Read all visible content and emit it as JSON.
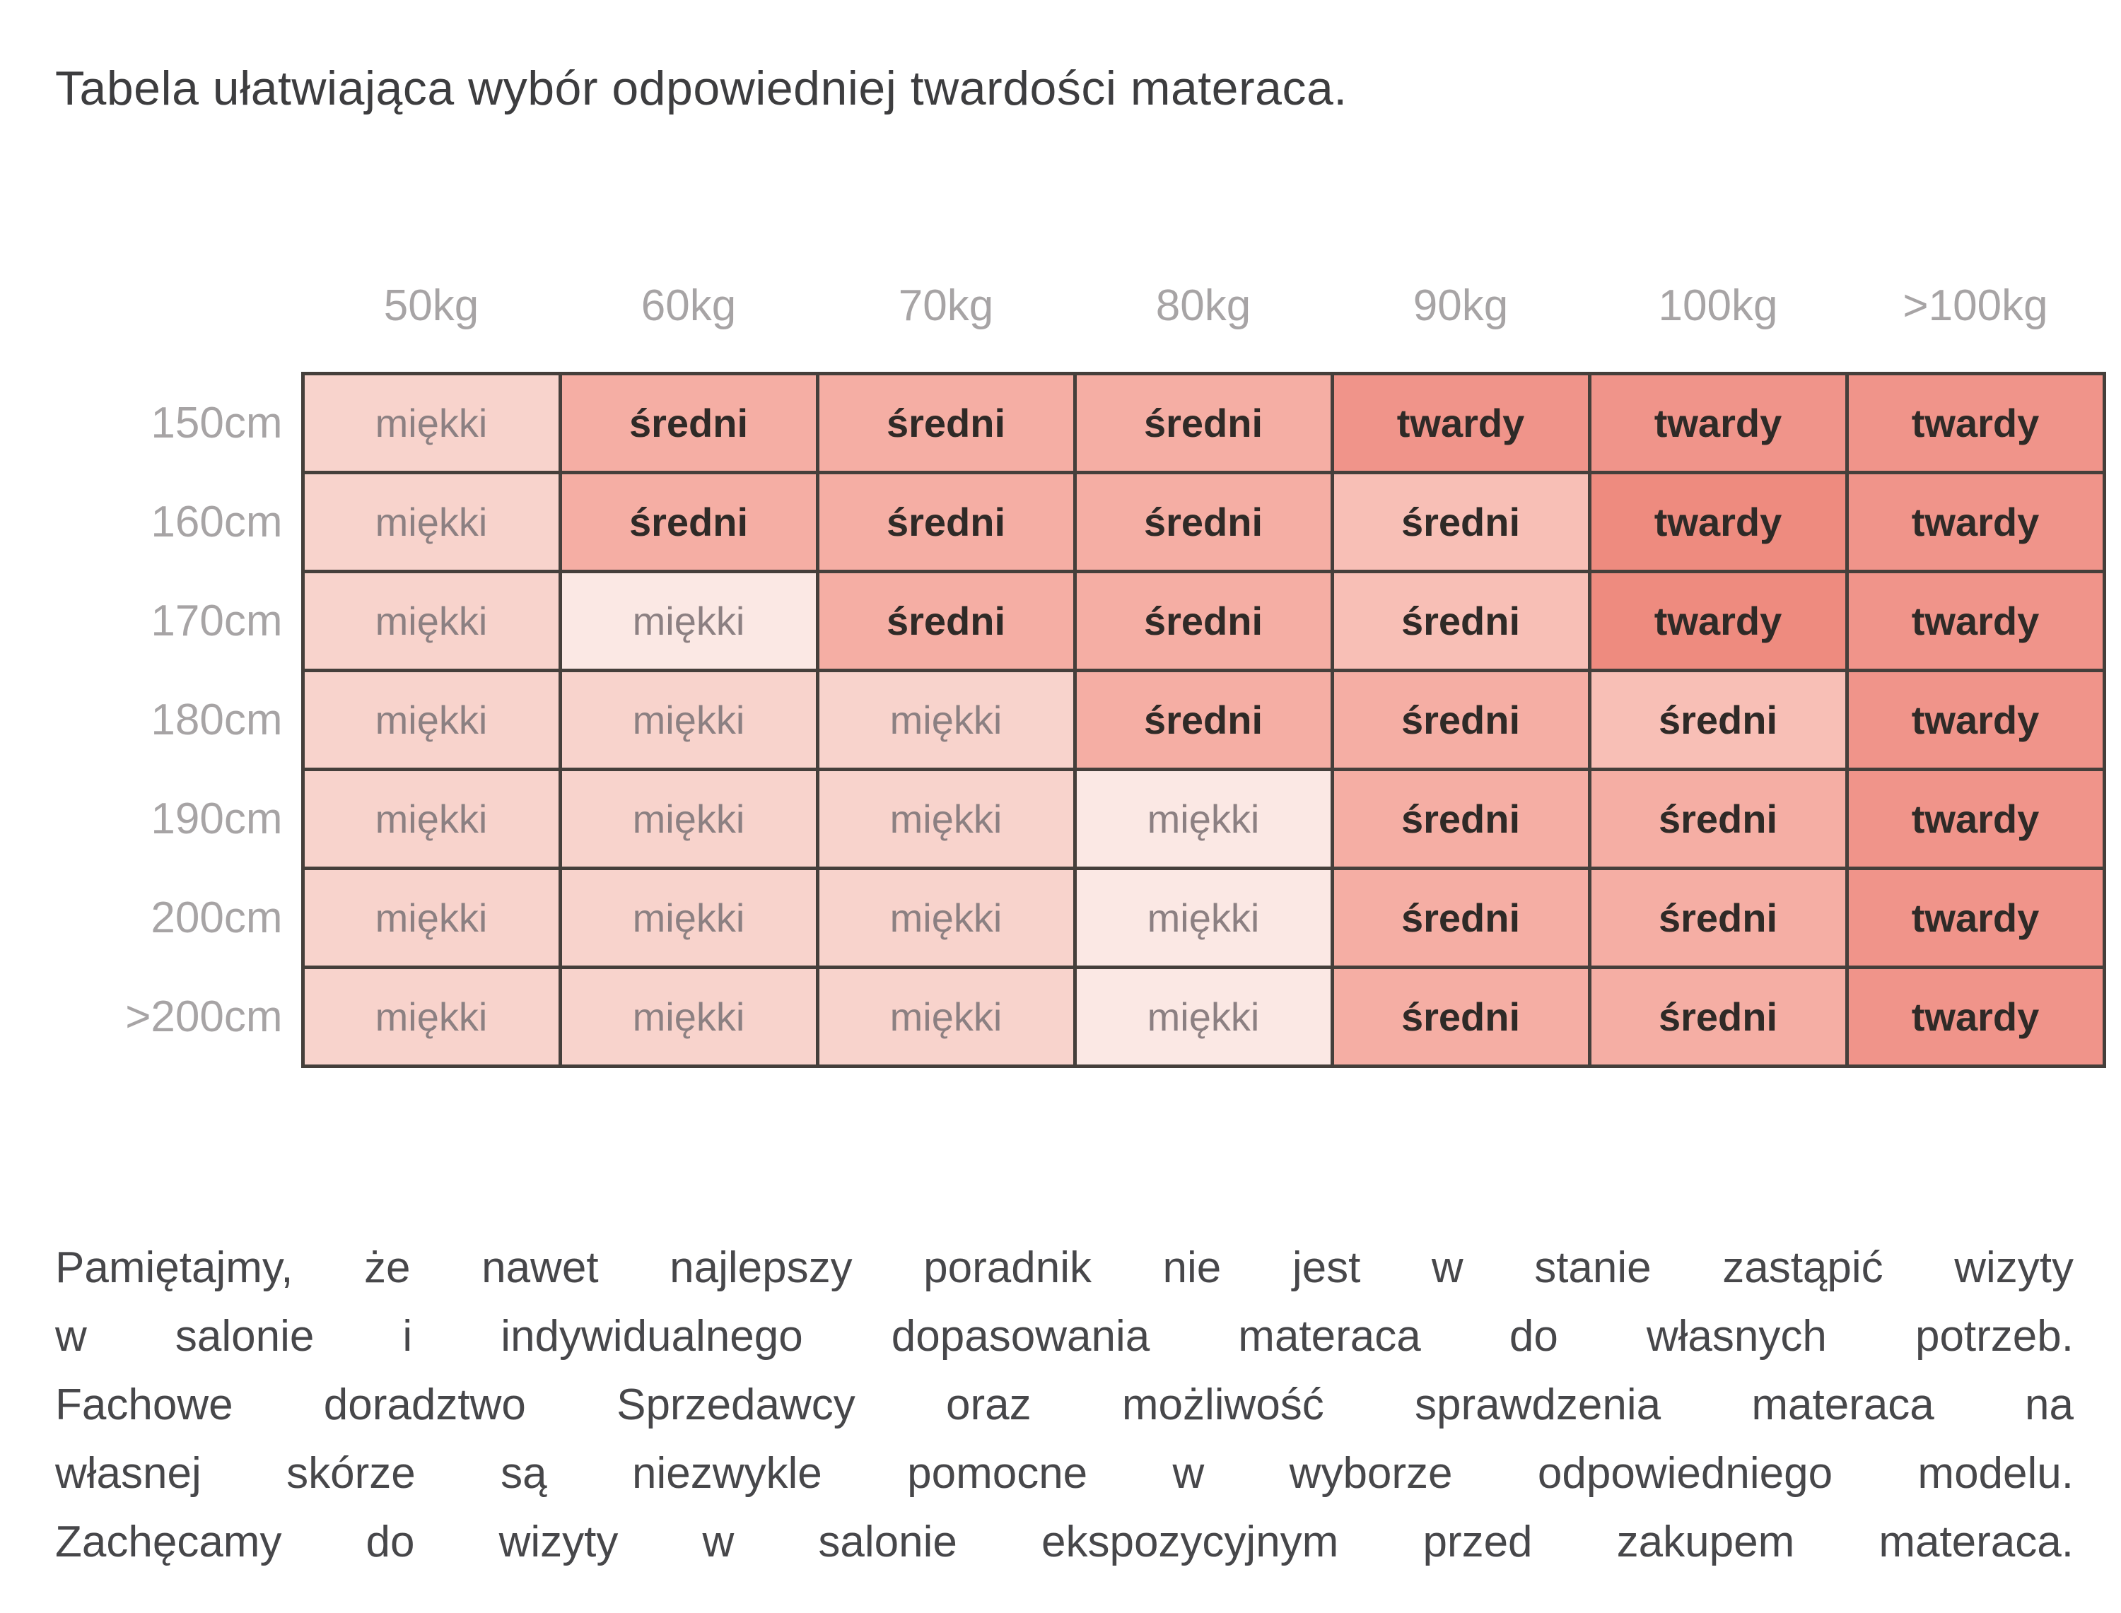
{
  "title": "Tabela ułatwiająca wybór odpowiedniej twardości materaca.",
  "table": {
    "corner_label": "",
    "weight_headers": [
      "50kg",
      "60kg",
      "70kg",
      "80kg",
      "90kg",
      "100kg",
      ">100kg"
    ],
    "rows": [
      {
        "label": "150cm",
        "cells": [
          {
            "text": "miękki",
            "shade": "soft"
          },
          {
            "text": "średni",
            "shade": "medium"
          },
          {
            "text": "średni",
            "shade": "medium"
          },
          {
            "text": "średni",
            "shade": "medium"
          },
          {
            "text": "twardy",
            "shade": "firm"
          },
          {
            "text": "twardy",
            "shade": "firm"
          },
          {
            "text": "twardy",
            "shade": "firm"
          }
        ]
      },
      {
        "label": "160cm",
        "cells": [
          {
            "text": "miękki",
            "shade": "soft"
          },
          {
            "text": "średni",
            "shade": "medium"
          },
          {
            "text": "średni",
            "shade": "medium"
          },
          {
            "text": "średni",
            "shade": "medium"
          },
          {
            "text": "średni",
            "shade": "medium-light"
          },
          {
            "text": "twardy",
            "shade": "firm-dark"
          },
          {
            "text": "twardy",
            "shade": "firm"
          }
        ]
      },
      {
        "label": "170cm",
        "cells": [
          {
            "text": "miękki",
            "shade": "soft"
          },
          {
            "text": "miękki",
            "shade": "soft-light"
          },
          {
            "text": "średni",
            "shade": "medium"
          },
          {
            "text": "średni",
            "shade": "medium"
          },
          {
            "text": "średni",
            "shade": "medium-light"
          },
          {
            "text": "twardy",
            "shade": "firm-dark"
          },
          {
            "text": "twardy",
            "shade": "firm"
          }
        ]
      },
      {
        "label": "180cm",
        "cells": [
          {
            "text": "miękki",
            "shade": "soft"
          },
          {
            "text": "miękki",
            "shade": "soft"
          },
          {
            "text": "miękki",
            "shade": "soft"
          },
          {
            "text": "średni",
            "shade": "medium"
          },
          {
            "text": "średni",
            "shade": "medium"
          },
          {
            "text": "średni",
            "shade": "medium-light"
          },
          {
            "text": "twardy",
            "shade": "firm"
          }
        ]
      },
      {
        "label": "190cm",
        "cells": [
          {
            "text": "miękki",
            "shade": "soft"
          },
          {
            "text": "miękki",
            "shade": "soft"
          },
          {
            "text": "miękki",
            "shade": "soft"
          },
          {
            "text": "miękki",
            "shade": "soft-light"
          },
          {
            "text": "średni",
            "shade": "medium"
          },
          {
            "text": "średni",
            "shade": "medium"
          },
          {
            "text": "twardy",
            "shade": "firm"
          }
        ]
      },
      {
        "label": "200cm",
        "cells": [
          {
            "text": "miękki",
            "shade": "soft"
          },
          {
            "text": "miękki",
            "shade": "soft"
          },
          {
            "text": "miękki",
            "shade": "soft"
          },
          {
            "text": "miękki",
            "shade": "soft-light"
          },
          {
            "text": "średni",
            "shade": "medium"
          },
          {
            "text": "średni",
            "shade": "medium"
          },
          {
            "text": "twardy",
            "shade": "firm"
          }
        ]
      },
      {
        "label": ">200cm",
        "cells": [
          {
            "text": "miękki",
            "shade": "soft"
          },
          {
            "text": "miękki",
            "shade": "soft"
          },
          {
            "text": "miękki",
            "shade": "soft"
          },
          {
            "text": "miękki",
            "shade": "soft-light"
          },
          {
            "text": "średni",
            "shade": "medium"
          },
          {
            "text": "średni",
            "shade": "medium"
          },
          {
            "text": "twardy",
            "shade": "firm"
          }
        ]
      }
    ]
  },
  "chart_data": {
    "type": "table",
    "title": "Tabela ułatwiająca wybór odpowiedniej twardości materaca.",
    "columns": [
      "50kg",
      "60kg",
      "70kg",
      "80kg",
      "90kg",
      "100kg",
      ">100kg"
    ],
    "row_labels": [
      "150cm",
      "160cm",
      "170cm",
      "180cm",
      "190cm",
      "200cm",
      ">200cm"
    ],
    "values": [
      [
        "miękki",
        "średni",
        "średni",
        "średni",
        "twardy",
        "twardy",
        "twardy"
      ],
      [
        "miękki",
        "średni",
        "średni",
        "średni",
        "średni",
        "twardy",
        "twardy"
      ],
      [
        "miękki",
        "miękki",
        "średni",
        "średni",
        "średni",
        "twardy",
        "twardy"
      ],
      [
        "miękki",
        "miękki",
        "miękki",
        "średni",
        "średni",
        "średni",
        "twardy"
      ],
      [
        "miękki",
        "miękki",
        "miękki",
        "miękki",
        "średni",
        "średni",
        "twardy"
      ],
      [
        "miękki",
        "miękki",
        "miękki",
        "miękki",
        "średni",
        "średni",
        "twardy"
      ],
      [
        "miękki",
        "miękki",
        "miękki",
        "miękki",
        "średni",
        "średni",
        "twardy"
      ]
    ]
  },
  "footer_paragraph": {
    "lines": [
      "Pamiętajmy, że nawet najlepszy poradnik nie jest w stanie zastąpić wizyty",
      "w salonie i indywidualnego dopasowania materaca do własnych potrzeb.",
      "Fachowe doradztwo Sprzedawcy oraz możliwość sprawdzenia materaca na",
      "własnej skórze są niezwykle pomocne w wyborze odpowiedniego modelu.",
      "Zachęcamy do wizyty w salonie ekspozycyjnym przed zakupem materaca."
    ],
    "full_text": "Pamiętajmy, że nawet najlepszy poradnik nie jest w stanie zastąpić wizyty w salonie i indywidualnego dopasowania materaca do własnych potrzeb. Fachowe doradztwo Sprzedawcy oraz możliwość sprawdzenia materaca na własnej skórze są niezwykle pomocne w wyborze odpowiedniego modelu. Zachęcamy do wizyty w salonie ekspozycyjnym przed zakupem materaca."
  },
  "colors": {
    "soft": "#f8d3cc",
    "soft_light": "#fbe8e4",
    "medium": "#f5aea4",
    "medium_light": "#f8bfb6",
    "firm": "#f0948a",
    "firm_dark": "#ee8b7f",
    "border": "#453f3b",
    "muted_text": "#a7a4a5",
    "soft_text": "#8c8082",
    "bold_text": "#2f2a27",
    "title_text": "#3d3d3f",
    "body_text": "#47474a"
  }
}
